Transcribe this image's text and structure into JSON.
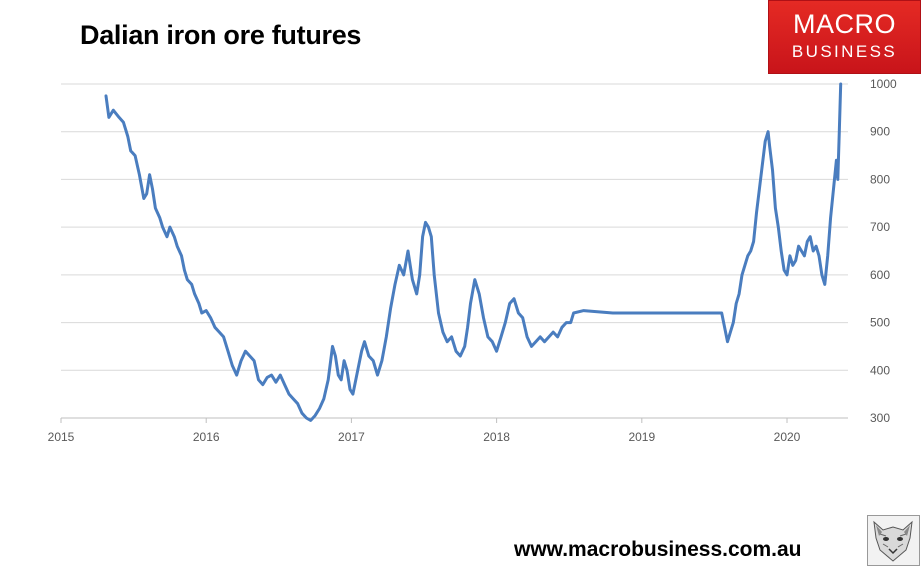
{
  "chart_data": {
    "type": "line",
    "title": "Dalian iron ore futures",
    "xlabel": "",
    "ylabel": "",
    "xlim": [
      2015,
      2020.42
    ],
    "ylim": [
      300,
      1000
    ],
    "x_ticks": [
      {
        "value": 2015,
        "label": "2015"
      },
      {
        "value": 2016,
        "label": "2016"
      },
      {
        "value": 2017,
        "label": "2017"
      },
      {
        "value": 2018,
        "label": "2018"
      },
      {
        "value": 2019,
        "label": "2019"
      },
      {
        "value": 2020,
        "label": "2020"
      }
    ],
    "y_ticks": [
      {
        "value": 300,
        "label": "300"
      },
      {
        "value": 400,
        "label": "400"
      },
      {
        "value": 500,
        "label": "500"
      },
      {
        "value": 600,
        "label": "600"
      },
      {
        "value": 700,
        "label": "700"
      },
      {
        "value": 800,
        "label": "800"
      },
      {
        "value": 900,
        "label": "900"
      },
      {
        "value": 1000,
        "label": "1000"
      }
    ],
    "grid": true,
    "series": [
      {
        "name": "Dalian iron ore futures",
        "color": "#4a7dbf",
        "x": [
          2015.31,
          2015.33,
          2015.36,
          2015.4,
          2015.43,
          2015.46,
          2015.48,
          2015.51,
          2015.54,
          2015.57,
          2015.59,
          2015.61,
          2015.63,
          2015.65,
          2015.68,
          2015.7,
          2015.73,
          2015.75,
          2015.78,
          2015.8,
          2015.83,
          2015.85,
          2015.87,
          2015.9,
          2015.92,
          2015.95,
          2015.97,
          2016.0,
          2016.03,
          2016.06,
          2016.09,
          2016.12,
          2016.15,
          2016.18,
          2016.21,
          2016.24,
          2016.27,
          2016.3,
          2016.33,
          2016.36,
          2016.39,
          2016.42,
          2016.45,
          2016.48,
          2016.51,
          2016.54,
          2016.57,
          2016.6,
          2016.63,
          2016.66,
          2016.69,
          2016.72,
          2016.75,
          2016.78,
          2016.81,
          2016.84,
          2016.87,
          2016.89,
          2016.91,
          2016.93,
          2016.95,
          2016.97,
          2016.99,
          2017.01,
          2017.03,
          2017.05,
          2017.07,
          2017.09,
          2017.12,
          2017.15,
          2017.18,
          2017.21,
          2017.24,
          2017.27,
          2017.3,
          2017.33,
          2017.36,
          2017.39,
          2017.42,
          2017.45,
          2017.47,
          2017.49,
          2017.51,
          2017.53,
          2017.55,
          2017.57,
          2017.6,
          2017.63,
          2017.66,
          2017.69,
          2017.72,
          2017.75,
          2017.78,
          2017.8,
          2017.82,
          2017.85,
          2017.88,
          2017.91,
          2017.94,
          2017.97,
          2018.0,
          2018.03,
          2018.06,
          2018.09,
          2018.12,
          2018.15,
          2018.18,
          2018.21,
          2018.24,
          2018.27,
          2018.3,
          2018.33,
          2018.36,
          2018.39,
          2018.42,
          2018.45,
          2018.48,
          2018.51,
          2018.53,
          2018.6,
          2018.8,
          2019.0,
          2019.2,
          2019.4,
          2019.52,
          2019.55,
          2019.57,
          2019.59,
          2019.61,
          2019.63,
          2019.65,
          2019.67,
          2019.69,
          2019.71,
          2019.73,
          2019.75,
          2019.77,
          2019.79,
          2019.81,
          2019.83,
          2019.85,
          2019.87,
          2019.88,
          2019.9,
          2019.92,
          2019.94,
          2019.96,
          2019.98,
          2020.0,
          2020.02,
          2020.04,
          2020.06,
          2020.08,
          2020.1,
          2020.12,
          2020.14,
          2020.16,
          2020.18,
          2020.2,
          2020.22,
          2020.24,
          2020.26,
          2020.28,
          2020.3,
          2020.32,
          2020.34,
          2020.35,
          2020.36,
          2020.37
        ],
        "y": [
          975,
          930,
          945,
          930,
          920,
          890,
          860,
          850,
          810,
          760,
          770,
          810,
          780,
          740,
          720,
          700,
          680,
          700,
          680,
          660,
          640,
          610,
          590,
          580,
          560,
          540,
          520,
          525,
          510,
          490,
          480,
          470,
          440,
          410,
          390,
          420,
          440,
          430,
          420,
          380,
          370,
          385,
          390,
          375,
          390,
          370,
          350,
          340,
          330,
          310,
          300,
          295,
          305,
          320,
          340,
          380,
          450,
          430,
          390,
          380,
          420,
          400,
          360,
          350,
          380,
          410,
          440,
          460,
          430,
          420,
          390,
          420,
          470,
          530,
          580,
          620,
          600,
          650,
          590,
          560,
          600,
          680,
          710,
          700,
          680,
          600,
          520,
          480,
          460,
          470,
          440,
          430,
          450,
          490,
          540,
          590,
          560,
          510,
          470,
          460,
          440,
          470,
          500,
          540,
          550,
          520,
          510,
          470,
          450,
          460,
          470,
          460,
          470,
          480,
          470,
          490,
          500,
          500,
          520,
          525,
          520,
          520,
          520,
          520,
          520,
          520,
          490,
          460,
          480,
          500,
          540,
          560,
          600,
          620,
          640,
          650,
          670,
          730,
          780,
          830,
          880,
          900,
          870,
          820,
          740,
          700,
          650,
          610,
          600,
          640,
          620,
          630,
          660,
          650,
          640,
          670,
          680,
          650,
          660,
          640,
          600,
          580,
          640,
          720,
          780,
          840,
          800,
          900,
          1000
        ]
      }
    ]
  },
  "header": {
    "title": "Dalian iron ore futures"
  },
  "logo": {
    "line1": "MACRO",
    "line2": "BUSINESS"
  },
  "footer": {
    "url": "www.macrobusiness.com.au"
  },
  "colors": {
    "line": "#4a7dbf",
    "grid": "#d9d9d9",
    "axis_text": "#595959",
    "logo_red": "#d81e1e"
  }
}
